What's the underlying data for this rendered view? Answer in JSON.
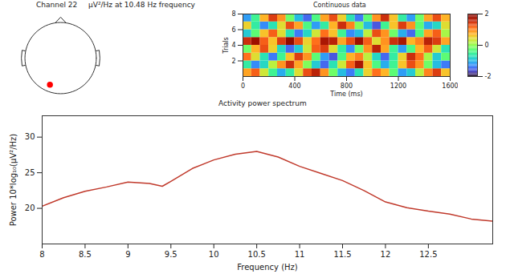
{
  "caption": "μV²/Hz at 10.48 Hz frequency",
  "chart_data": [
    {
      "type": "topography",
      "title": "Channel 22",
      "electrode": {
        "x": -0.3,
        "y": -0.75
      },
      "color": "#ff0000"
    },
    {
      "type": "heatmap",
      "title": "Continuous data",
      "xlabel": "Time (ms)",
      "ylabel": "Trials",
      "xlim": [
        0,
        1600
      ],
      "xticks": [
        0,
        400,
        800,
        1200,
        1600
      ],
      "ylim": [
        0,
        8
      ],
      "yticks": [
        2,
        4,
        6,
        8
      ],
      "color": "turbo",
      "cells": [
        [
          0.8,
          1.2,
          0.3,
          -0.5,
          -1.1,
          -0.6,
          0.4,
          1.3,
          1.6,
          0.9,
          -0.2,
          -1.0,
          -1.4,
          -0.7,
          0.5,
          1.1,
          0.7,
          -0.3,
          -1.2,
          -0.9,
          0.2,
          1.0,
          1.4,
          0.6
        ],
        [
          -0.6,
          -1.3,
          -0.8,
          0.2,
          0.9,
          1.5,
          0.8,
          -0.1,
          -0.9,
          -1.5,
          -0.7,
          0.3,
          1.2,
          1.7,
          0.6,
          -0.4,
          -1.1,
          -0.5,
          0.6,
          1.3,
          0.9,
          -0.2,
          -1.0,
          -1.4
        ],
        [
          1.1,
          0.4,
          -0.7,
          -1.4,
          -0.5,
          0.6,
          1.4,
          0.9,
          -0.3,
          -1.2,
          -1.6,
          -0.4,
          0.7,
          1.0,
          0.2,
          -0.8,
          -1.5,
          -0.6,
          0.5,
          1.5,
          1.1,
          0.1,
          -0.9,
          -0.3
        ],
        [
          -0.2,
          0.7,
          1.3,
          0.5,
          -0.8,
          -1.5,
          -0.9,
          0.3,
          1.2,
          1.4,
          0.4,
          -0.6,
          -1.3,
          -0.2,
          0.9,
          1.6,
          0.8,
          -0.5,
          -1.2,
          -0.4,
          0.7,
          1.2,
          0.3,
          -0.7
        ],
        [
          1.5,
          1.8,
          1.2,
          0.6,
          1.4,
          1.9,
          1.3,
          0.5,
          1.1,
          1.7,
          1.6,
          0.8,
          1.3,
          1.8,
          1.2,
          0.4,
          0.9,
          1.5,
          1.7,
          0.7,
          1.0,
          1.6,
          1.4,
          0.8
        ],
        [
          -0.9,
          -0.3,
          0.6,
          1.2,
          0.4,
          -0.7,
          -1.4,
          -0.8,
          0.3,
          1.1,
          0.6,
          -0.5,
          -1.3,
          -1.0,
          0.2,
          1.3,
          0.9,
          -0.2,
          -1.1,
          -1.5,
          -0.4,
          0.8,
          1.2,
          0.1
        ],
        [
          0.5,
          -0.6,
          -1.3,
          -0.7,
          0.4,
          1.3,
          0.8,
          -0.4,
          -1.2,
          -0.6,
          0.7,
          1.5,
          1.0,
          -0.1,
          -1.0,
          -1.6,
          -0.5,
          0.6,
          1.4,
          0.9,
          -0.3,
          -1.1,
          -0.8,
          0.4
        ],
        [
          -1.2,
          -0.5,
          0.7,
          1.4,
          0.9,
          -0.2,
          -1.0,
          -1.5,
          -0.4,
          0.8,
          1.3,
          0.5,
          -0.7,
          -1.4,
          -0.3,
          0.9,
          1.5,
          0.6,
          -0.6,
          -1.2,
          -0.2,
          0.8,
          1.3,
          0.7
        ]
      ],
      "colorbar": {
        "range": [
          -2,
          2
        ],
        "ticks": [
          -2,
          0,
          2
        ]
      }
    },
    {
      "type": "line",
      "title": "Activity power spectrum",
      "xlabel": "Frequency (Hz)",
      "ylabel": "Power 10*log₁₀(μV²/Hz)",
      "x": [
        8,
        8.25,
        8.5,
        8.75,
        9,
        9.25,
        9.4,
        9.5,
        9.75,
        10,
        10.25,
        10.5,
        10.75,
        11,
        11.25,
        11.5,
        11.75,
        12,
        12.25,
        12.5,
        12.75,
        13,
        13.25
      ],
      "values": [
        20.3,
        21.5,
        22.4,
        23.0,
        23.7,
        23.5,
        23.1,
        23.8,
        25.6,
        26.8,
        27.6,
        28.0,
        27.2,
        25.9,
        24.9,
        23.9,
        22.5,
        20.9,
        20.1,
        19.6,
        19.2,
        18.5,
        18.2
      ],
      "color": "#c0392b",
      "xlim": [
        8,
        13.25
      ],
      "xticks": [
        8,
        8.5,
        9,
        9.5,
        10,
        10.5,
        11,
        11.5,
        12,
        12.5
      ],
      "ylim": [
        15,
        33
      ],
      "yticks": [
        20,
        25,
        30
      ]
    }
  ]
}
